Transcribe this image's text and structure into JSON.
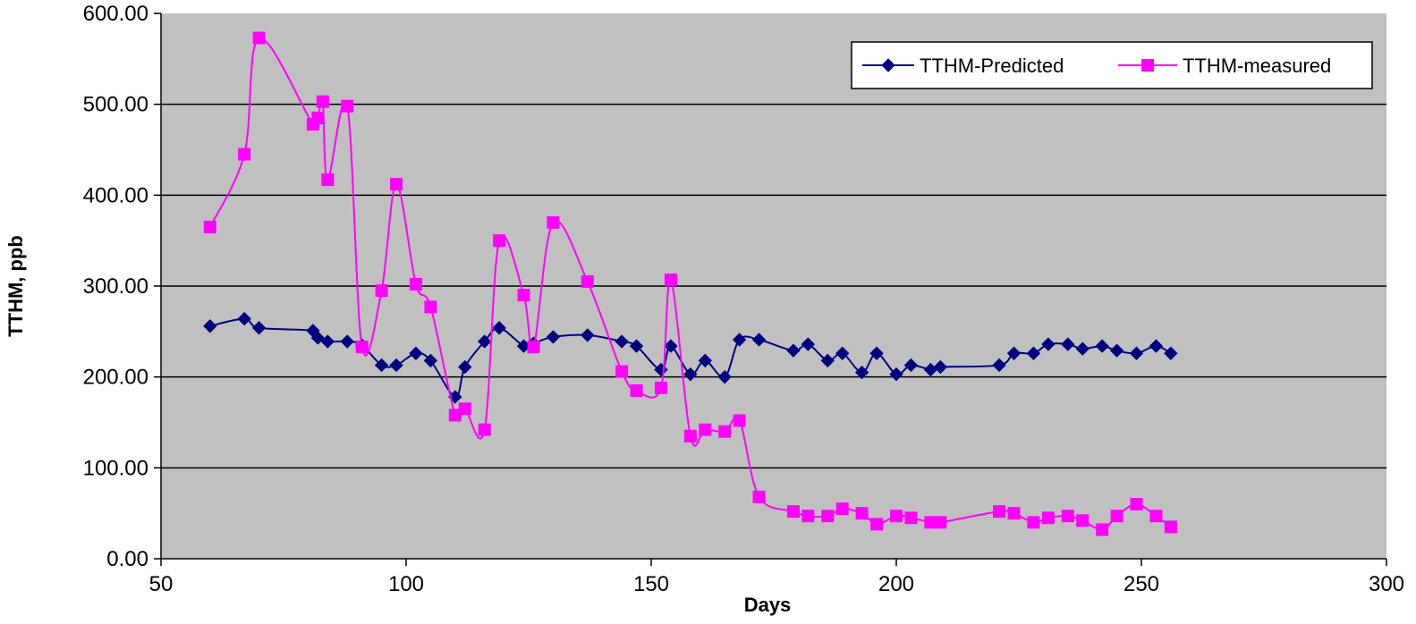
{
  "chart_data": {
    "type": "line",
    "title": "",
    "xlabel": "Days",
    "ylabel": "TTHM, ppb",
    "xlim": [
      50,
      300
    ],
    "ylim": [
      0,
      600
    ],
    "x_ticks": [
      "50",
      "100",
      "150",
      "200",
      "250",
      "300"
    ],
    "y_ticks": [
      "0.00",
      "100.00",
      "200.00",
      "300.00",
      "400.00",
      "500.00",
      "600.00"
    ],
    "grid": "horizontal",
    "legend_position": "top-right",
    "plot_background": "#C0C0C0",
    "series": [
      {
        "name": "TTHM-Predicted",
        "color": "#000080",
        "marker": "diamond",
        "points": [
          [
            60,
            256
          ],
          [
            67,
            264
          ],
          [
            70,
            254
          ],
          [
            81,
            251
          ],
          [
            82,
            243
          ],
          [
            84,
            239
          ],
          [
            88,
            239
          ],
          [
            91,
            235
          ],
          [
            95,
            213
          ],
          [
            98,
            213
          ],
          [
            102,
            226
          ],
          [
            105,
            218
          ],
          [
            110,
            178
          ],
          [
            112,
            211
          ],
          [
            116,
            239
          ],
          [
            119,
            254
          ],
          [
            124,
            234
          ],
          [
            126,
            237
          ],
          [
            130,
            244
          ],
          [
            137,
            246
          ],
          [
            144,
            239
          ],
          [
            147,
            234
          ],
          [
            152,
            208
          ],
          [
            154,
            234
          ],
          [
            158,
            203
          ],
          [
            161,
            218
          ],
          [
            165,
            200
          ],
          [
            168,
            241
          ],
          [
            172,
            241
          ],
          [
            179,
            229
          ],
          [
            182,
            236
          ],
          [
            186,
            218
          ],
          [
            189,
            226
          ],
          [
            193,
            205
          ],
          [
            196,
            226
          ],
          [
            200,
            203
          ],
          [
            203,
            213
          ],
          [
            207,
            208
          ],
          [
            209,
            211
          ],
          [
            221,
            213
          ],
          [
            224,
            226
          ],
          [
            228,
            226
          ],
          [
            231,
            236
          ],
          [
            235,
            236
          ],
          [
            238,
            231
          ],
          [
            242,
            234
          ],
          [
            245,
            229
          ],
          [
            249,
            226
          ],
          [
            253,
            234
          ],
          [
            256,
            226
          ]
        ]
      },
      {
        "name": "TTHM-measured",
        "color": "#FF00FF",
        "marker": "square",
        "points": [
          [
            60,
            365
          ],
          [
            67,
            445
          ],
          [
            70,
            573
          ],
          [
            81,
            478
          ],
          [
            82,
            485
          ],
          [
            83,
            503
          ],
          [
            84,
            417
          ],
          [
            88,
            498
          ],
          [
            91,
            233
          ],
          [
            95,
            295
          ],
          [
            98,
            412
          ],
          [
            102,
            302
          ],
          [
            105,
            277
          ],
          [
            110,
            158
          ],
          [
            112,
            165
          ],
          [
            116,
            142
          ],
          [
            119,
            350
          ],
          [
            124,
            290
          ],
          [
            126,
            233
          ],
          [
            130,
            370
          ],
          [
            137,
            305
          ],
          [
            144,
            206
          ],
          [
            147,
            185
          ],
          [
            152,
            188
          ],
          [
            154,
            307
          ],
          [
            158,
            135
          ],
          [
            161,
            142
          ],
          [
            165,
            140
          ],
          [
            168,
            152
          ],
          [
            172,
            68
          ],
          [
            179,
            52
          ],
          [
            182,
            47
          ],
          [
            186,
            47
          ],
          [
            189,
            55
          ],
          [
            193,
            50
          ],
          [
            196,
            38
          ],
          [
            200,
            47
          ],
          [
            203,
            45
          ],
          [
            207,
            40
          ],
          [
            209,
            40
          ],
          [
            221,
            52
          ],
          [
            224,
            50
          ],
          [
            228,
            40
          ],
          [
            231,
            45
          ],
          [
            235,
            47
          ],
          [
            238,
            42
          ],
          [
            242,
            32
          ],
          [
            245,
            47
          ],
          [
            249,
            60
          ],
          [
            253,
            47
          ],
          [
            256,
            35
          ]
        ]
      }
    ]
  }
}
